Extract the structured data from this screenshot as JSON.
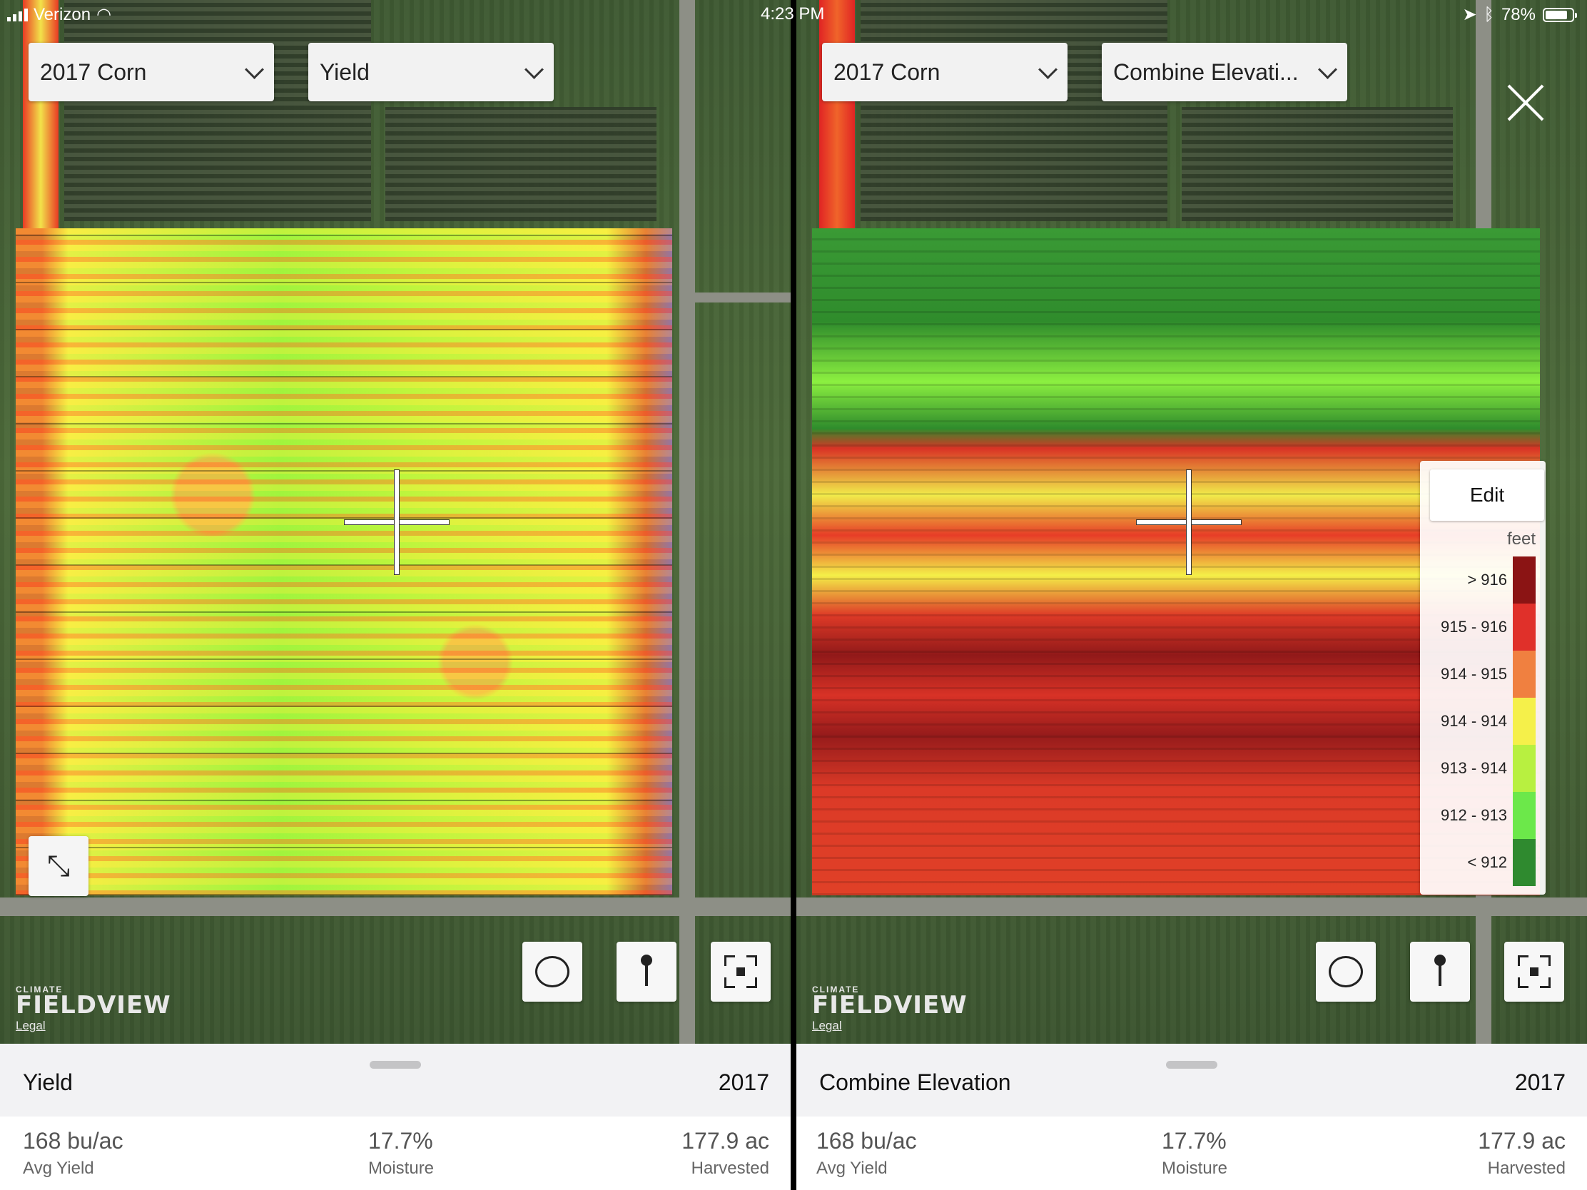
{
  "status_bar": {
    "carrier": "Verizon",
    "time": "4:23 PM",
    "battery": "78%"
  },
  "panels": [
    {
      "season": "2017 Corn",
      "layer": "Yield",
      "brand_small": "CLIMATE",
      "brand_big": "FIELDVIEW",
      "legal": "Legal",
      "sheet": {
        "title": "Yield",
        "year": "2017",
        "stats": [
          {
            "value": "168 bu/ac",
            "label": "Avg Yield"
          },
          {
            "value": "17.7%",
            "label": "Moisture"
          },
          {
            "value": "177.9 ac",
            "label": "Harvested"
          }
        ]
      }
    },
    {
      "season": "2017 Corn",
      "layer": "Combine Elevati...",
      "brand_small": "CLIMATE",
      "brand_big": "FIELDVIEW",
      "legal": "Legal",
      "legend": {
        "edit_label": "Edit",
        "unit": "feet",
        "items": [
          {
            "label": "> 916",
            "color": "#8b1414"
          },
          {
            "label": "915 - 916",
            "color": "#e0302a"
          },
          {
            "label": "914 - 915",
            "color": "#f08040"
          },
          {
            "label": "914 - 914",
            "color": "#f5f04a"
          },
          {
            "label": "913 - 914",
            "color": "#b8f040"
          },
          {
            "label": "912 - 913",
            "color": "#6ce84a"
          },
          {
            "label": "< 912",
            "color": "#2f8a2f"
          }
        ]
      },
      "sheet": {
        "title": "Combine Elevation",
        "year": "2017",
        "stats": [
          {
            "value": "168 bu/ac",
            "label": "Avg Yield"
          },
          {
            "value": "17.7%",
            "label": "Moisture"
          },
          {
            "value": "177.9 ac",
            "label": "Harvested"
          }
        ]
      }
    }
  ],
  "icons": {
    "close": "close-icon",
    "expand": "expand-arrows-icon",
    "lasso": "lasso-icon",
    "pin": "pin-icon",
    "locate": "locate-icon"
  }
}
